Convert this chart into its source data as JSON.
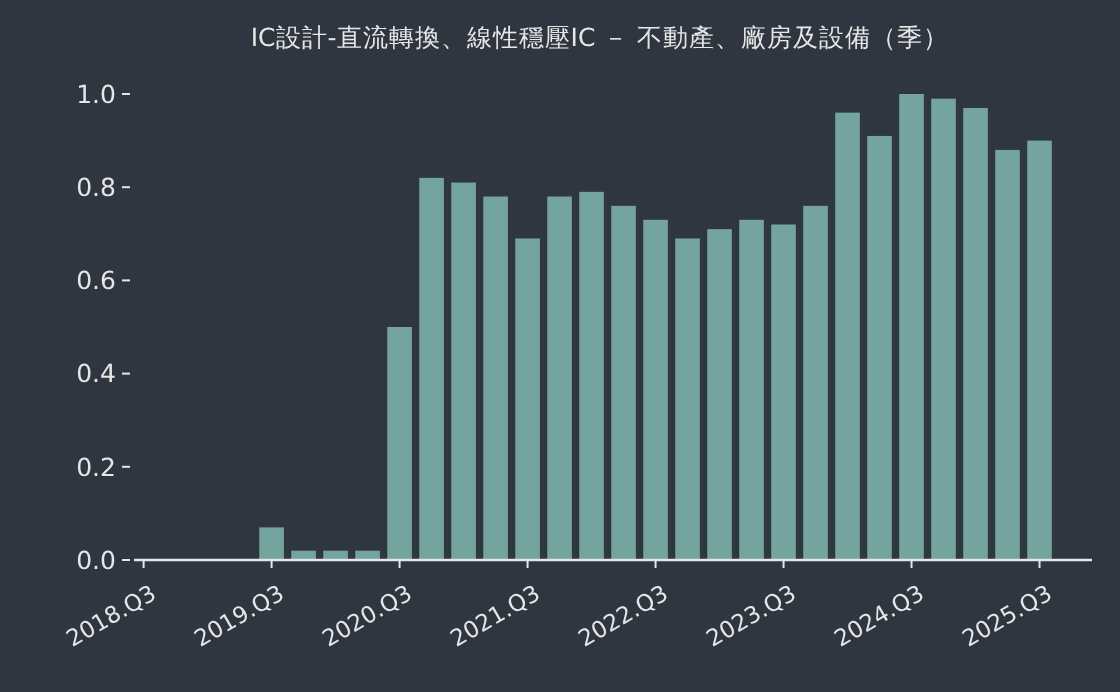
{
  "chart_data": {
    "type": "bar",
    "title": "IC設計-直流轉換、線性穩壓IC － 不動產、廠房及設備（季）",
    "color": "#73a49e",
    "categories": [
      "2018.Q3",
      null,
      null,
      null,
      "2019.Q3",
      null,
      null,
      null,
      "2020.Q3",
      null,
      null,
      null,
      "2021.Q3",
      null,
      null,
      null,
      "2022.Q3",
      null,
      null,
      null,
      "2023.Q3",
      null,
      null,
      null,
      "2024.Q3",
      null,
      null,
      null,
      "2025.Q3"
    ],
    "values": [
      null,
      null,
      null,
      null,
      0.07,
      0.02,
      0.02,
      0.02,
      0.5,
      0.82,
      0.81,
      0.78,
      0.69,
      0.78,
      0.79,
      0.76,
      0.73,
      0.69,
      0.71,
      0.73,
      0.72,
      0.76,
      0.96,
      0.91,
      1.0,
      0.99,
      0.97,
      0.88,
      0.9
    ],
    "ylim": [
      0,
      1
    ],
    "yticks": [
      {
        "value": 0,
        "label": "0.0"
      },
      0.2,
      0.4,
      0.6,
      0.8,
      {
        "value": 1,
        "label": "1.0"
      }
    ],
    "grid": false
  }
}
